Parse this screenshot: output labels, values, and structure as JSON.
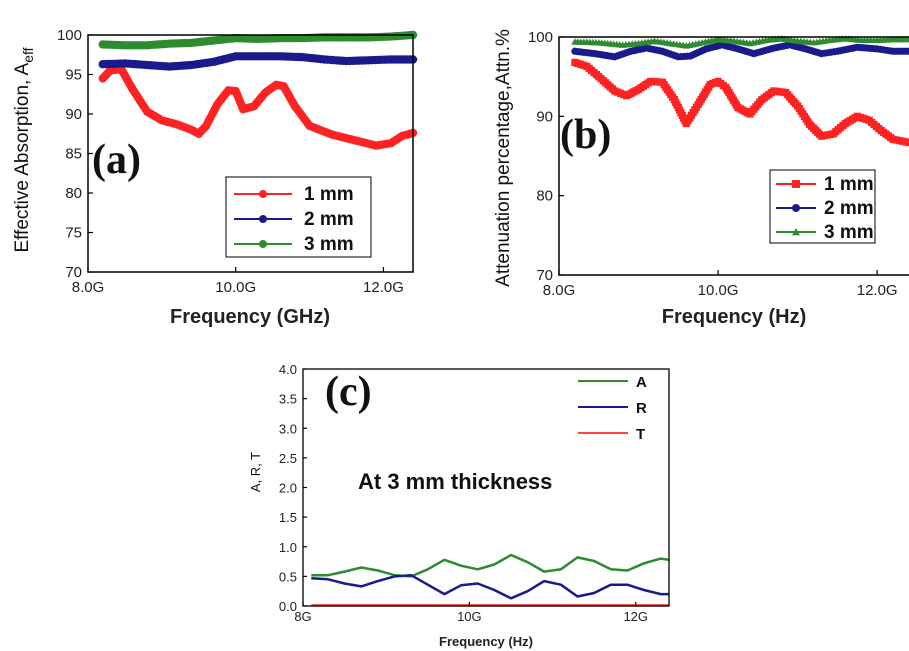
{
  "chart_data": [
    {
      "panel": "(a)",
      "type": "line",
      "xlabel": "Frequency (GHz)",
      "ylabel": "Effective Absorption, A",
      "ylabel_sub": "eff",
      "xlim": [
        8.0,
        12.4
      ],
      "ylim": [
        70,
        100
      ],
      "xticks": [
        8.0,
        10.0,
        12.0
      ],
      "xtick_labels": [
        "8.0G",
        "10.0G",
        "12.0G"
      ],
      "yticks": [
        70,
        75,
        80,
        85,
        90,
        95,
        100
      ],
      "ytick_labels": [
        "70",
        "75",
        "80",
        "85",
        "90",
        "95",
        "100"
      ],
      "legend_placement": "lower-right",
      "series": [
        {
          "name": "1 mm",
          "color": "#ff2222",
          "marker": "circle",
          "x": [
            8.2,
            8.3,
            8.45,
            8.6,
            8.8,
            9.0,
            9.2,
            9.4,
            9.5,
            9.6,
            9.75,
            9.9,
            10.0,
            10.1,
            10.25,
            10.4,
            10.55,
            10.65,
            10.8,
            11.0,
            11.3,
            11.6,
            11.9,
            12.1,
            12.25,
            12.4
          ],
          "y": [
            94.5,
            95.5,
            95.7,
            93.2,
            90.3,
            89.2,
            88.7,
            88.0,
            87.5,
            88.5,
            91.2,
            93.0,
            92.9,
            90.6,
            91.0,
            92.7,
            93.7,
            93.5,
            91.0,
            88.5,
            87.4,
            86.7,
            86.0,
            86.3,
            87.2,
            87.6
          ]
        },
        {
          "name": "2 mm",
          "color": "#1a1a8c",
          "marker": "circle",
          "x": [
            8.2,
            8.5,
            8.8,
            9.1,
            9.4,
            9.7,
            10.0,
            10.3,
            10.6,
            10.9,
            11.2,
            11.5,
            11.8,
            12.1,
            12.4
          ],
          "y": [
            96.3,
            96.4,
            96.2,
            96.0,
            96.2,
            96.6,
            97.3,
            97.3,
            97.3,
            97.2,
            96.9,
            96.7,
            96.8,
            96.9,
            96.9
          ]
        },
        {
          "name": "3 mm",
          "color": "#2e8b2e",
          "marker": "circle",
          "x": [
            8.2,
            8.5,
            8.8,
            9.1,
            9.4,
            9.7,
            10.0,
            10.3,
            10.6,
            10.9,
            11.2,
            11.5,
            11.8,
            12.1,
            12.4
          ],
          "y": [
            98.8,
            98.7,
            98.7,
            98.9,
            99.0,
            99.3,
            99.6,
            99.5,
            99.6,
            99.6,
            99.7,
            99.7,
            99.7,
            99.8,
            100.0
          ]
        }
      ]
    },
    {
      "panel": "(b)",
      "type": "line",
      "xlabel": "Frequency (Hz)",
      "ylabel": "Attenuation percentage,Attn.%",
      "xlim": [
        8.0,
        12.4
      ],
      "ylim": [
        70,
        100
      ],
      "xticks": [
        8.0,
        10.0,
        12.0
      ],
      "xtick_labels": [
        "8.0G",
        "10.0G",
        "12.0G"
      ],
      "yticks": [
        70,
        80,
        90,
        100
      ],
      "ytick_labels": [
        "70",
        "80",
        "90",
        "100"
      ],
      "legend_placement": "lower-right",
      "series": [
        {
          "name": "1 mm",
          "color": "#ff2222",
          "marker": "square",
          "x": [
            8.2,
            8.35,
            8.5,
            8.7,
            8.85,
            9.0,
            9.15,
            9.3,
            9.45,
            9.6,
            9.75,
            9.9,
            10.0,
            10.1,
            10.25,
            10.4,
            10.55,
            10.7,
            10.85,
            11.0,
            11.15,
            11.3,
            11.45,
            11.6,
            11.75,
            11.9,
            12.05,
            12.2,
            12.4
          ],
          "y": [
            96.8,
            96.3,
            95.0,
            93.2,
            92.6,
            93.4,
            94.4,
            94.3,
            92.1,
            89.1,
            91.5,
            94.0,
            94.4,
            93.6,
            91.1,
            90.3,
            92.1,
            93.2,
            93.0,
            91.3,
            89.0,
            87.5,
            87.8,
            89.1,
            90.0,
            89.5,
            88.2,
            87.1,
            86.7
          ]
        },
        {
          "name": "2 mm",
          "color": "#1a1a8c",
          "marker": "circle",
          "x": [
            8.2,
            8.45,
            8.7,
            8.9,
            9.1,
            9.3,
            9.5,
            9.65,
            9.85,
            10.05,
            10.25,
            10.45,
            10.7,
            10.9,
            11.1,
            11.3,
            11.5,
            11.75,
            12.0,
            12.2,
            12.4
          ],
          "y": [
            98.2,
            97.9,
            97.5,
            98.2,
            98.6,
            98.2,
            97.5,
            97.6,
            98.5,
            99.0,
            98.5,
            97.9,
            98.6,
            99.0,
            98.5,
            97.9,
            98.2,
            98.7,
            98.5,
            98.2,
            98.2
          ]
        },
        {
          "name": "3 mm",
          "color": "#2e8b2e",
          "marker": "triangle",
          "x": [
            8.2,
            8.5,
            8.8,
            9.0,
            9.2,
            9.4,
            9.6,
            9.8,
            10.0,
            10.2,
            10.4,
            10.6,
            10.8,
            11.0,
            11.2,
            11.4,
            11.6,
            11.8,
            12.0,
            12.2,
            12.4
          ],
          "y": [
            99.4,
            99.3,
            99.0,
            99.2,
            99.5,
            99.2,
            98.9,
            99.3,
            99.7,
            99.5,
            99.2,
            99.6,
            99.8,
            99.5,
            99.3,
            99.6,
            99.8,
            99.6,
            99.6,
            99.7,
            99.7
          ]
        }
      ]
    },
    {
      "panel": "(c)",
      "type": "line",
      "xlabel": "Frequency (Hz)",
      "ylabel": "A, R, T",
      "annotation": "At 3 mm thickness",
      "xlim": [
        8.0,
        12.4
      ],
      "ylim": [
        0.0,
        4.0
      ],
      "xticks": [
        8,
        10,
        12
      ],
      "xtick_labels": [
        "8G",
        "10G",
        "12G"
      ],
      "yticks": [
        0.0,
        0.5,
        1.0,
        1.5,
        2.0,
        2.5,
        3.0,
        3.5,
        4.0
      ],
      "ytick_labels": [
        "0.0",
        "0.5",
        "1.0",
        "1.5",
        "2.0",
        "2.5",
        "3.0",
        "3.5",
        "4.0"
      ],
      "legend_placement": "top-right",
      "series": [
        {
          "name": "A",
          "color": "#2e8b2e",
          "x": [
            8.1,
            8.3,
            8.5,
            8.7,
            8.9,
            9.1,
            9.3,
            9.5,
            9.7,
            9.9,
            10.1,
            10.3,
            10.5,
            10.7,
            10.9,
            11.1,
            11.3,
            11.5,
            11.7,
            11.9,
            12.1,
            12.3,
            12.4
          ],
          "y": [
            0.52,
            0.52,
            0.58,
            0.65,
            0.6,
            0.52,
            0.5,
            0.62,
            0.78,
            0.68,
            0.62,
            0.7,
            0.86,
            0.74,
            0.58,
            0.62,
            0.82,
            0.76,
            0.62,
            0.6,
            0.72,
            0.8,
            0.78
          ]
        },
        {
          "name": "R",
          "color": "#1a1a8c",
          "x": [
            8.1,
            8.3,
            8.5,
            8.7,
            8.9,
            9.1,
            9.3,
            9.5,
            9.7,
            9.9,
            10.1,
            10.3,
            10.5,
            10.7,
            10.9,
            11.1,
            11.3,
            11.5,
            11.7,
            11.9,
            12.1,
            12.3,
            12.4
          ],
          "y": [
            0.47,
            0.45,
            0.38,
            0.33,
            0.42,
            0.5,
            0.52,
            0.36,
            0.2,
            0.35,
            0.38,
            0.27,
            0.13,
            0.25,
            0.42,
            0.36,
            0.16,
            0.22,
            0.36,
            0.36,
            0.27,
            0.2,
            0.2
          ]
        },
        {
          "name": "T",
          "color": "#ff4444",
          "x": [
            8.1,
            8.5,
            9.0,
            9.5,
            10.0,
            10.5,
            11.0,
            11.5,
            12.0,
            12.4
          ],
          "y": [
            0.01,
            0.01,
            0.01,
            0.01,
            0.01,
            0.01,
            0.01,
            0.01,
            0.01,
            0.01
          ]
        }
      ]
    }
  ]
}
